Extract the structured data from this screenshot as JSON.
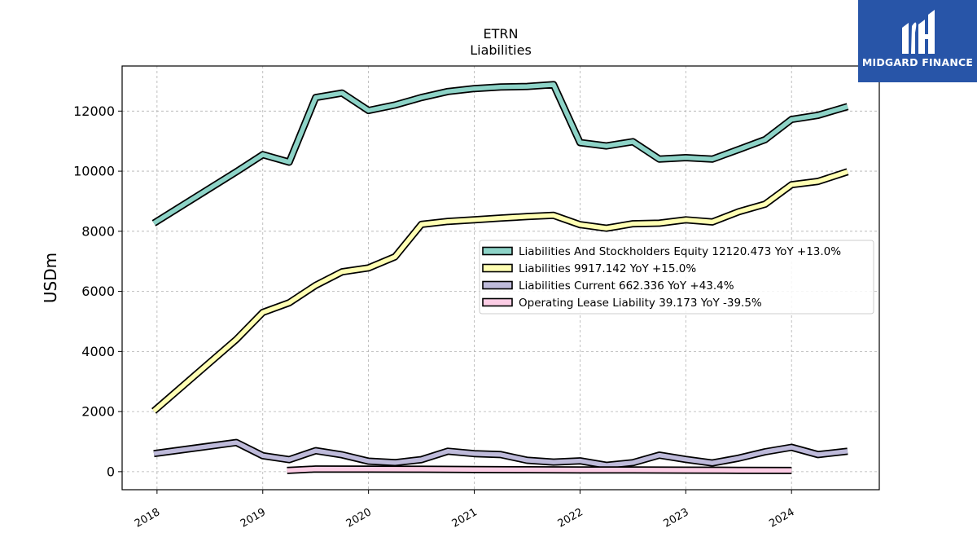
{
  "logo": {
    "text": "MIDGARD FINANCE"
  },
  "chart_data": {
    "type": "line",
    "title": "ETRN",
    "subtitle": "Liabilities",
    "ylabel": "USDm",
    "xlabel": "",
    "ylim": [
      -600,
      13500
    ],
    "xlim": [
      2017.67,
      2024.83
    ],
    "yticks": [
      0,
      2000,
      4000,
      6000,
      8000,
      10000,
      12000
    ],
    "xticks": [
      "2018",
      "2019",
      "2020",
      "2021",
      "2022",
      "2023",
      "2024"
    ],
    "grid": true,
    "legend_position": "center-right",
    "series": [
      {
        "name": "Liabilities And Stockholders Equity",
        "legend": "Liabilities And Stockholders Equity  12120.473 YoY +13.0%",
        "color": "#8dd3c7",
        "points": [
          [
            2017.97,
            8270
          ],
          [
            2018.75,
            9980
          ],
          [
            2019.0,
            10550
          ],
          [
            2019.25,
            10300
          ],
          [
            2019.5,
            12450
          ],
          [
            2019.75,
            12600
          ],
          [
            2020.0,
            12020
          ],
          [
            2020.25,
            12200
          ],
          [
            2020.5,
            12450
          ],
          [
            2020.75,
            12650
          ],
          [
            2021.0,
            12750
          ],
          [
            2021.25,
            12800
          ],
          [
            2021.5,
            12820
          ],
          [
            2021.75,
            12880
          ],
          [
            2022.0,
            10950
          ],
          [
            2022.25,
            10840
          ],
          [
            2022.5,
            10980
          ],
          [
            2022.75,
            10400
          ],
          [
            2023.0,
            10450
          ],
          [
            2023.25,
            10400
          ],
          [
            2023.5,
            10720
          ],
          [
            2023.75,
            11050
          ],
          [
            2024.0,
            11720
          ],
          [
            2024.25,
            11860
          ],
          [
            2024.53,
            12150
          ]
        ]
      },
      {
        "name": "Liabilities",
        "legend": "Liabilities  9917.142 YoY +15.0%",
        "color": "#ffffb3",
        "points": [
          [
            2017.97,
            2020
          ],
          [
            2018.75,
            4400
          ],
          [
            2019.0,
            5300
          ],
          [
            2019.25,
            5620
          ],
          [
            2019.5,
            6200
          ],
          [
            2019.75,
            6650
          ],
          [
            2020.0,
            6780
          ],
          [
            2020.25,
            7150
          ],
          [
            2020.5,
            8230
          ],
          [
            2020.75,
            8330
          ],
          [
            2021.0,
            8380
          ],
          [
            2021.25,
            8440
          ],
          [
            2021.5,
            8490
          ],
          [
            2021.75,
            8530
          ],
          [
            2022.0,
            8220
          ],
          [
            2022.25,
            8100
          ],
          [
            2022.5,
            8250
          ],
          [
            2022.75,
            8270
          ],
          [
            2023.0,
            8380
          ],
          [
            2023.25,
            8310
          ],
          [
            2023.5,
            8650
          ],
          [
            2023.75,
            8900
          ],
          [
            2024.0,
            9550
          ],
          [
            2024.25,
            9660
          ],
          [
            2024.53,
            9980
          ]
        ]
      },
      {
        "name": "Liabilities Current",
        "legend": "Liabilities Current  662.336 YoY +43.4%",
        "color": "#bebada",
        "points": [
          [
            2017.97,
            600
          ],
          [
            2018.75,
            970
          ],
          [
            2019.0,
            530
          ],
          [
            2019.25,
            400
          ],
          [
            2019.5,
            700
          ],
          [
            2019.75,
            560
          ],
          [
            2020.0,
            350
          ],
          [
            2020.25,
            300
          ],
          [
            2020.5,
            400
          ],
          [
            2020.75,
            680
          ],
          [
            2021.0,
            600
          ],
          [
            2021.25,
            570
          ],
          [
            2021.5,
            380
          ],
          [
            2021.75,
            320
          ],
          [
            2022.0,
            360
          ],
          [
            2022.25,
            210
          ],
          [
            2022.5,
            300
          ],
          [
            2022.75,
            550
          ],
          [
            2023.0,
            410
          ],
          [
            2023.25,
            290
          ],
          [
            2023.5,
            450
          ],
          [
            2023.75,
            660
          ],
          [
            2024.0,
            810
          ],
          [
            2024.25,
            570
          ],
          [
            2024.53,
            680
          ]
        ]
      },
      {
        "name": "Operating Lease Liability",
        "legend": "Operating Lease Liability  39.173 YoY -39.5%",
        "color": "#fccde5",
        "points": [
          [
            2019.23,
            40
          ],
          [
            2019.5,
            90
          ],
          [
            2020.0,
            85
          ],
          [
            2020.5,
            80
          ],
          [
            2021.0,
            70
          ],
          [
            2021.5,
            65
          ],
          [
            2022.0,
            60
          ],
          [
            2022.5,
            55
          ],
          [
            2023.0,
            50
          ],
          [
            2023.5,
            45
          ],
          [
            2024.0,
            40
          ]
        ]
      }
    ]
  }
}
